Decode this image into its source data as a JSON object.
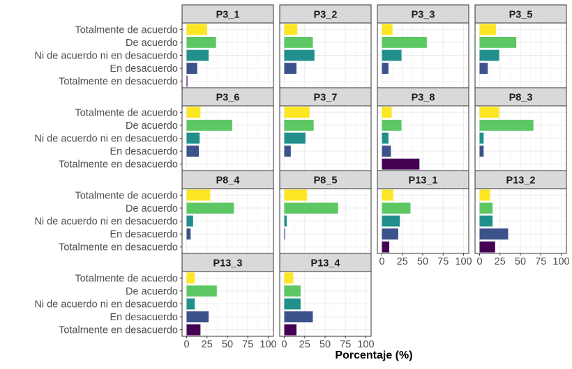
{
  "chart_data": {
    "type": "bar",
    "orientation": "horizontal",
    "layout": "facet-grid",
    "title": "",
    "xlabel": "Porcentaje (%)",
    "ylabel": "",
    "xlim": [
      0,
      100
    ],
    "x_ticks": [
      "0",
      "25",
      "50",
      "75",
      "100"
    ],
    "grid": true,
    "legend": "none",
    "categories": [
      "Totalmente de acuerdo",
      "De acuerdo",
      "Ni de acuerdo ni en desacuerdo",
      "En desacuerdo",
      "Totalmente en desacuerdo"
    ],
    "category_colors": [
      "#FDE725",
      "#5DC863",
      "#21908C",
      "#3B528B",
      "#440154"
    ],
    "panels": [
      {
        "name": "P3_1",
        "values": [
          25,
          36,
          27,
          13,
          1
        ]
      },
      {
        "name": "P3_2",
        "values": [
          16,
          35,
          37,
          15,
          0
        ]
      },
      {
        "name": "P3_3",
        "values": [
          13,
          55,
          24,
          8,
          0
        ]
      },
      {
        "name": "P3_5",
        "values": [
          20,
          45,
          24,
          10,
          0
        ]
      },
      {
        "name": "P3_6",
        "values": [
          17,
          56,
          16,
          15,
          0
        ]
      },
      {
        "name": "P3_7",
        "values": [
          31,
          36,
          26,
          8,
          0
        ]
      },
      {
        "name": "P3_8",
        "values": [
          12,
          24,
          8,
          11,
          46
        ]
      },
      {
        "name": "P8_3",
        "values": [
          24,
          66,
          5,
          5,
          0
        ]
      },
      {
        "name": "P8_4",
        "values": [
          29,
          58,
          8,
          5,
          0
        ]
      },
      {
        "name": "P8_5",
        "values": [
          28,
          66,
          3,
          1,
          0
        ]
      },
      {
        "name": "P13_1",
        "values": [
          14,
          35,
          22,
          20,
          9
        ]
      },
      {
        "name": "P13_2",
        "values": [
          13,
          16,
          16,
          35,
          19
        ]
      },
      {
        "name": "P13_3",
        "values": [
          10,
          37,
          10,
          27,
          17
        ]
      },
      {
        "name": "P13_4",
        "values": [
          11,
          20,
          20,
          35,
          15
        ]
      }
    ]
  }
}
